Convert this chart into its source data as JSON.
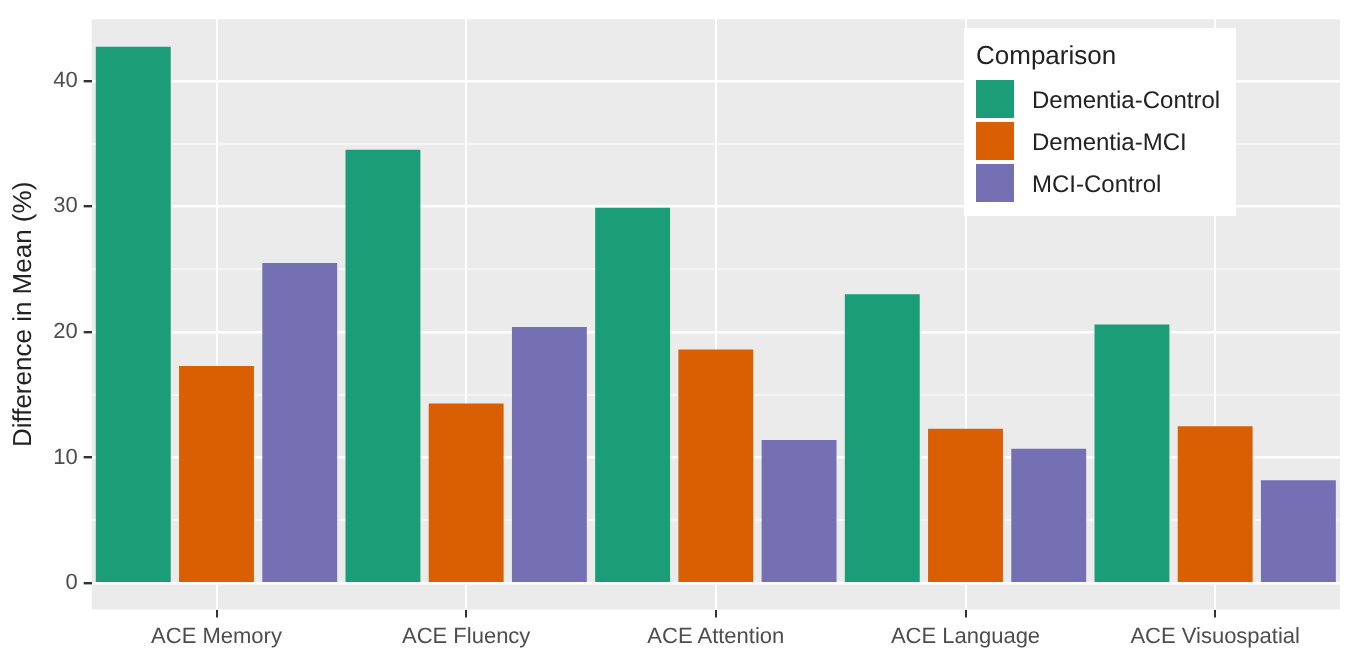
{
  "chart_data": {
    "type": "bar",
    "ylabel": "Difference in Mean (%)",
    "legend_title": "Comparison",
    "categories": [
      "ACE Memory",
      "ACE Fluency",
      "ACE Attention",
      "ACE Language",
      "ACE Visuospatial"
    ],
    "series": [
      {
        "name": "Dementia-Control",
        "color": "#1b9e77",
        "values": [
          42.7,
          34.5,
          29.9,
          23.0,
          20.6
        ]
      },
      {
        "name": "Dementia-MCI",
        "color": "#d95f02",
        "values": [
          17.3,
          14.3,
          18.6,
          12.3,
          12.5
        ]
      },
      {
        "name": "MCI-Control",
        "color": "#7570b3",
        "values": [
          25.5,
          20.4,
          11.4,
          10.7,
          8.2
        ]
      }
    ],
    "ylim": [
      -2.1,
      44.9
    ],
    "yticks": [
      0,
      {
        "value": 5,
        "label": null
      },
      10,
      {
        "value": 15,
        "label": null
      },
      20,
      {
        "value": 25,
        "label": null
      },
      30,
      {
        "value": 35,
        "label": null
      },
      40
    ],
    "grid": true,
    "legend": "top right"
  }
}
